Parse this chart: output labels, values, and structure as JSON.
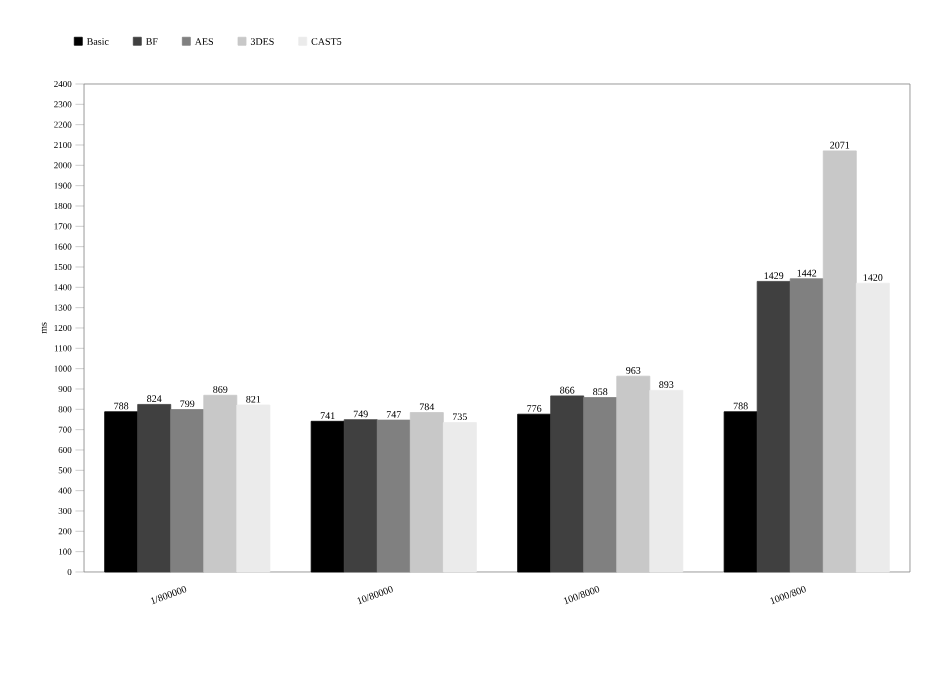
{
  "chart_data": {
    "type": "bar",
    "ylabel": "ms",
    "categories": [
      "1/800000",
      "10/80000",
      "100/8000",
      "1000/800"
    ],
    "series": [
      {
        "name": "Basic",
        "color": "#000000",
        "values": [
          788,
          741,
          776,
          788
        ]
      },
      {
        "name": "BF",
        "color": "#404040",
        "values": [
          824,
          749,
          866,
          1429
        ]
      },
      {
        "name": "AES",
        "color": "#808080",
        "values": [
          799,
          747,
          858,
          1442
        ]
      },
      {
        "name": "3DES",
        "color": "#c8c8c8",
        "values": [
          869,
          784,
          963,
          2071
        ]
      },
      {
        "name": "CAST5",
        "color": "#ebebeb",
        "values": [
          821,
          735,
          893,
          1420
        ]
      }
    ],
    "ylim": [
      0,
      2400
    ],
    "yticks": [
      0,
      100,
      200,
      300,
      400,
      500,
      600,
      700,
      800,
      900,
      1000,
      1100,
      1200,
      1300,
      1400,
      1500,
      1600,
      1700,
      1800,
      1900,
      2000,
      2100,
      2200,
      2300,
      2400
    ],
    "data_labels": true,
    "legend": "top left",
    "grid": false
  }
}
